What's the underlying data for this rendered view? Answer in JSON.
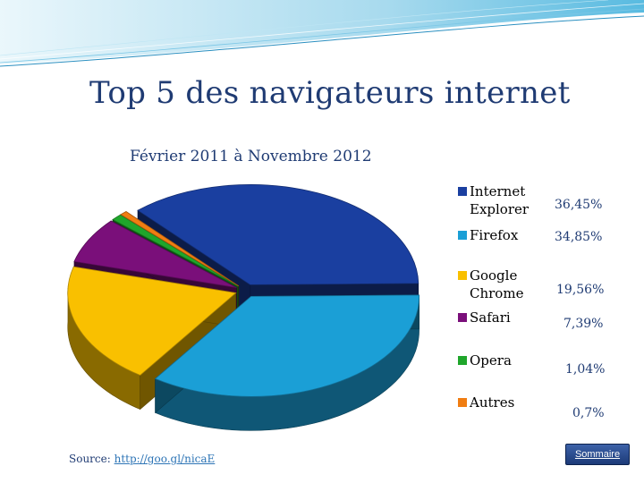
{
  "title": "Top 5 des navigateurs internet",
  "subtitle": "Février 2011 à Novembre 2012",
  "legend": [
    {
      "label": "Internet Explorer",
      "pct": "36,45%",
      "color": "#1a3fa0"
    },
    {
      "label": "Firefox",
      "pct": "34,85%",
      "color": "#1b9fd6"
    },
    {
      "label": "Google Chrome",
      "pct": "19,56%",
      "color": "#f9c000"
    },
    {
      "label": "Safari",
      "pct": "7,39%",
      "color": "#7a0f7a"
    },
    {
      "label": "Opera",
      "pct": "1,04%",
      "color": "#1fa62b"
    },
    {
      "label": "Autres",
      "pct": "0,7%",
      "color": "#f07d12"
    }
  ],
  "chart_data": {
    "type": "pie",
    "title": "Top 5 des navigateurs internet",
    "subtitle": "Février 2011 à Novembre 2012",
    "categories": [
      "Internet Explorer",
      "Firefox",
      "Google Chrome",
      "Safari",
      "Opera",
      "Autres"
    ],
    "values": [
      36.45,
      34.85,
      19.56,
      7.39,
      1.04,
      0.7
    ],
    "unit": "%",
    "colors": [
      "#1a3fa0",
      "#1b9fd6",
      "#f9c000",
      "#7a0f7a",
      "#1fa62b",
      "#f07d12"
    ],
    "legend_position": "right",
    "style": "3d-exploded"
  },
  "source": {
    "label": "Source:",
    "link": "http://goo.gl/nicaE"
  },
  "sommaire_label": "Sommaire"
}
